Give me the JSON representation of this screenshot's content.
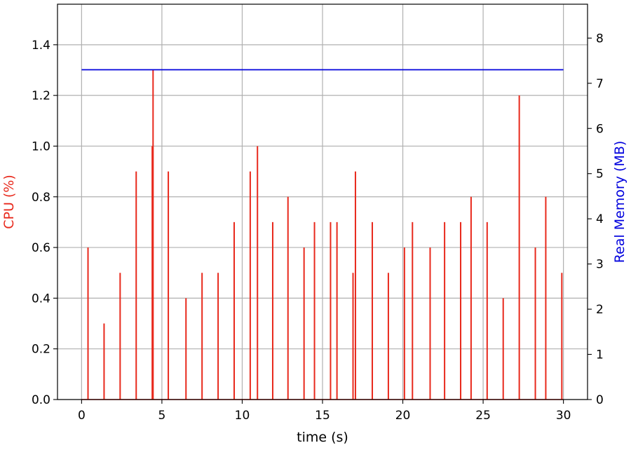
{
  "chart_data": {
    "type": "line",
    "xlabel": "time (s)",
    "ylabel_left": "CPU (%)",
    "ylabel_right": "Real Memory (MB)",
    "xlim": [
      -1.5,
      31.5
    ],
    "ylim_left": [
      0,
      1.56
    ],
    "ylim_right": [
      0,
      8.75
    ],
    "x_ticks": [
      0,
      5,
      10,
      15,
      20,
      25,
      30
    ],
    "x_tick_labels": [
      "0",
      "5",
      "10",
      "15",
      "20",
      "25",
      "30"
    ],
    "y_left_ticks": [
      0.0,
      0.2,
      0.4,
      0.6,
      0.8,
      1.0,
      1.2,
      1.4
    ],
    "y_left_tick_labels": [
      "0.0",
      "0.2",
      "0.4",
      "0.6",
      "0.8",
      "1.0",
      "1.2",
      "1.4"
    ],
    "y_right_ticks": [
      0,
      1,
      2,
      3,
      4,
      5,
      6,
      7,
      8
    ],
    "y_right_tick_labels": [
      "0",
      "1",
      "2",
      "3",
      "4",
      "5",
      "6",
      "7",
      "8"
    ],
    "grid": true,
    "colors": {
      "cpu": "#e8291c",
      "memory": "#0000dd",
      "grid": "#b0b0b0",
      "axis": "#000000",
      "cpu_label": "#e8291c",
      "memory_label": "#0000dd"
    },
    "series": [
      {
        "axis": "left",
        "color": "#e8291c",
        "spikes": [
          [
            0.4,
            0.6
          ],
          [
            1.4,
            0.3
          ],
          [
            2.4,
            0.5
          ],
          [
            3.4,
            0.9
          ],
          [
            4.4,
            1.0
          ],
          [
            4.45,
            1.3
          ],
          [
            5.4,
            0.9
          ],
          [
            6.5,
            0.4
          ],
          [
            7.5,
            0.5
          ],
          [
            8.5,
            0.5
          ],
          [
            9.5,
            0.7
          ],
          [
            10.5,
            0.9
          ],
          [
            10.95,
            1.0
          ],
          [
            11.9,
            0.7
          ],
          [
            12.85,
            0.8
          ],
          [
            13.85,
            0.6
          ],
          [
            14.5,
            0.7
          ],
          [
            15.5,
            0.7
          ],
          [
            15.9,
            0.7
          ],
          [
            16.9,
            0.5
          ],
          [
            17.05,
            0.9
          ],
          [
            18.1,
            0.7
          ],
          [
            19.1,
            0.5
          ],
          [
            20.1,
            0.6
          ],
          [
            20.6,
            0.7
          ],
          [
            21.7,
            0.6
          ],
          [
            22.6,
            0.7
          ],
          [
            23.6,
            0.7
          ],
          [
            24.25,
            0.8
          ],
          [
            25.25,
            0.7
          ],
          [
            26.25,
            0.4
          ],
          [
            27.25,
            1.2
          ],
          [
            28.25,
            0.6
          ],
          [
            28.9,
            0.8
          ],
          [
            29.9,
            0.5
          ]
        ]
      },
      {
        "axis": "right",
        "color": "#0000dd",
        "x": [
          0,
          30
        ],
        "y": [
          7.3,
          7.3
        ]
      }
    ]
  }
}
